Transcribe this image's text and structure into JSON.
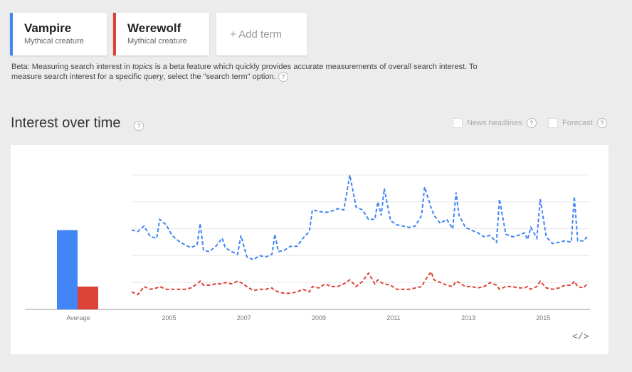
{
  "terms": [
    {
      "name": "Vampire",
      "type": "Mythical creature",
      "color": "#4285f4"
    },
    {
      "name": "Werewolf",
      "type": "Mythical creature",
      "color": "#db4437"
    }
  ],
  "add_term": "+ Add term",
  "beta": {
    "p1": "Beta: Measuring search interest in ",
    "topics": "topics",
    "p2": " is a beta feature which quickly provides accurate measurements of overall search interest. To measure search interest for a specific ",
    "query": "query",
    "p3": ", select the \"search term\" option."
  },
  "section_title": "Interest over time",
  "help_glyph": "?",
  "options": {
    "news": "News headlines",
    "forecast": "Forecast"
  },
  "embed_label": "</>",
  "chart_data": {
    "type": "line",
    "title": "Interest over time",
    "x_start": 2004.0,
    "x_end": 2016.25,
    "ylim": [
      0,
      100
    ],
    "xticks": [
      2005,
      2007,
      2009,
      2011,
      2013,
      2015
    ],
    "average": {
      "label": "Average",
      "values": [
        59,
        17
      ]
    },
    "series": [
      {
        "name": "Vampire",
        "points": [
          [
            2004.0,
            59
          ],
          [
            2004.17,
            58
          ],
          [
            2004.33,
            62
          ],
          [
            2004.5,
            54
          ],
          [
            2004.67,
            53
          ],
          [
            2004.75,
            67
          ],
          [
            2004.92,
            63
          ],
          [
            2005.08,
            55
          ],
          [
            2005.25,
            51
          ],
          [
            2005.42,
            48
          ],
          [
            2005.58,
            46
          ],
          [
            2005.75,
            48
          ],
          [
            2005.83,
            64
          ],
          [
            2005.92,
            44
          ],
          [
            2006.08,
            43
          ],
          [
            2006.25,
            47
          ],
          [
            2006.42,
            53
          ],
          [
            2006.5,
            46
          ],
          [
            2006.67,
            43
          ],
          [
            2006.83,
            41
          ],
          [
            2006.92,
            55
          ],
          [
            2007.08,
            39
          ],
          [
            2007.25,
            37
          ],
          [
            2007.42,
            40
          ],
          [
            2007.58,
            39
          ],
          [
            2007.75,
            41
          ],
          [
            2007.83,
            56
          ],
          [
            2007.92,
            43
          ],
          [
            2008.08,
            44
          ],
          [
            2008.25,
            47
          ],
          [
            2008.42,
            47
          ],
          [
            2008.58,
            53
          ],
          [
            2008.75,
            58
          ],
          [
            2008.83,
            74
          ],
          [
            2009.0,
            73
          ],
          [
            2009.17,
            72
          ],
          [
            2009.33,
            73
          ],
          [
            2009.5,
            75
          ],
          [
            2009.67,
            74
          ],
          [
            2009.83,
            100
          ],
          [
            2010.0,
            76
          ],
          [
            2010.17,
            74
          ],
          [
            2010.33,
            67
          ],
          [
            2010.5,
            67
          ],
          [
            2010.58,
            80
          ],
          [
            2010.67,
            70
          ],
          [
            2010.75,
            90
          ],
          [
            2010.92,
            66
          ],
          [
            2011.08,
            63
          ],
          [
            2011.25,
            62
          ],
          [
            2011.42,
            61
          ],
          [
            2011.58,
            62
          ],
          [
            2011.75,
            70
          ],
          [
            2011.83,
            91
          ],
          [
            2012.0,
            76
          ],
          [
            2012.08,
            70
          ],
          [
            2012.25,
            64
          ],
          [
            2012.42,
            67
          ],
          [
            2012.58,
            60
          ],
          [
            2012.67,
            87
          ],
          [
            2012.75,
            70
          ],
          [
            2012.92,
            61
          ],
          [
            2013.08,
            59
          ],
          [
            2013.25,
            57
          ],
          [
            2013.42,
            54
          ],
          [
            2013.58,
            55
          ],
          [
            2013.75,
            50
          ],
          [
            2013.83,
            82
          ],
          [
            2014.0,
            56
          ],
          [
            2014.17,
            54
          ],
          [
            2014.33,
            55
          ],
          [
            2014.5,
            57
          ],
          [
            2014.58,
            52
          ],
          [
            2014.67,
            61
          ],
          [
            2014.83,
            53
          ],
          [
            2014.92,
            82
          ],
          [
            2015.08,
            54
          ],
          [
            2015.25,
            49
          ],
          [
            2015.42,
            50
          ],
          [
            2015.58,
            51
          ],
          [
            2015.75,
            50
          ],
          [
            2015.83,
            84
          ],
          [
            2015.92,
            51
          ],
          [
            2016.08,
            51
          ],
          [
            2016.17,
            54
          ]
        ]
      },
      {
        "name": "Werewolf",
        "points": [
          [
            2004.0,
            13
          ],
          [
            2004.17,
            11
          ],
          [
            2004.33,
            17
          ],
          [
            2004.5,
            15
          ],
          [
            2004.67,
            16
          ],
          [
            2004.75,
            17
          ],
          [
            2004.92,
            15
          ],
          [
            2005.08,
            15
          ],
          [
            2005.25,
            15
          ],
          [
            2005.42,
            15
          ],
          [
            2005.58,
            16
          ],
          [
            2005.75,
            19
          ],
          [
            2005.83,
            21
          ],
          [
            2005.92,
            18
          ],
          [
            2006.08,
            18
          ],
          [
            2006.25,
            19
          ],
          [
            2006.42,
            19
          ],
          [
            2006.5,
            20
          ],
          [
            2006.67,
            19
          ],
          [
            2006.83,
            21
          ],
          [
            2006.92,
            20
          ],
          [
            2007.08,
            17
          ],
          [
            2007.25,
            14
          ],
          [
            2007.42,
            15
          ],
          [
            2007.58,
            15
          ],
          [
            2007.75,
            16
          ],
          [
            2007.83,
            14
          ],
          [
            2007.92,
            13
          ],
          [
            2008.08,
            12
          ],
          [
            2008.25,
            12
          ],
          [
            2008.42,
            13
          ],
          [
            2008.58,
            15
          ],
          [
            2008.75,
            13
          ],
          [
            2008.83,
            17
          ],
          [
            2009.0,
            16
          ],
          [
            2009.17,
            19
          ],
          [
            2009.33,
            17
          ],
          [
            2009.5,
            17
          ],
          [
            2009.67,
            19
          ],
          [
            2009.83,
            22
          ],
          [
            2010.0,
            17
          ],
          [
            2010.17,
            21
          ],
          [
            2010.33,
            27
          ],
          [
            2010.5,
            19
          ],
          [
            2010.58,
            22
          ],
          [
            2010.67,
            20
          ],
          [
            2010.75,
            19
          ],
          [
            2010.92,
            18
          ],
          [
            2011.08,
            15
          ],
          [
            2011.25,
            15
          ],
          [
            2011.42,
            15
          ],
          [
            2011.58,
            16
          ],
          [
            2011.75,
            17
          ],
          [
            2011.83,
            21
          ],
          [
            2012.0,
            28
          ],
          [
            2012.08,
            22
          ],
          [
            2012.25,
            20
          ],
          [
            2012.42,
            18
          ],
          [
            2012.58,
            17
          ],
          [
            2012.67,
            21
          ],
          [
            2012.75,
            20
          ],
          [
            2012.92,
            17
          ],
          [
            2013.08,
            17
          ],
          [
            2013.25,
            16
          ],
          [
            2013.42,
            17
          ],
          [
            2013.58,
            20
          ],
          [
            2013.75,
            18
          ],
          [
            2013.83,
            15
          ],
          [
            2014.0,
            17
          ],
          [
            2014.17,
            17
          ],
          [
            2014.33,
            16
          ],
          [
            2014.5,
            16
          ],
          [
            2014.58,
            17
          ],
          [
            2014.67,
            15
          ],
          [
            2014.83,
            17
          ],
          [
            2014.92,
            21
          ],
          [
            2015.08,
            16
          ],
          [
            2015.25,
            15
          ],
          [
            2015.42,
            16
          ],
          [
            2015.58,
            18
          ],
          [
            2015.75,
            18
          ],
          [
            2015.83,
            21
          ],
          [
            2015.92,
            17
          ],
          [
            2016.08,
            16
          ],
          [
            2016.17,
            19
          ]
        ]
      }
    ]
  }
}
